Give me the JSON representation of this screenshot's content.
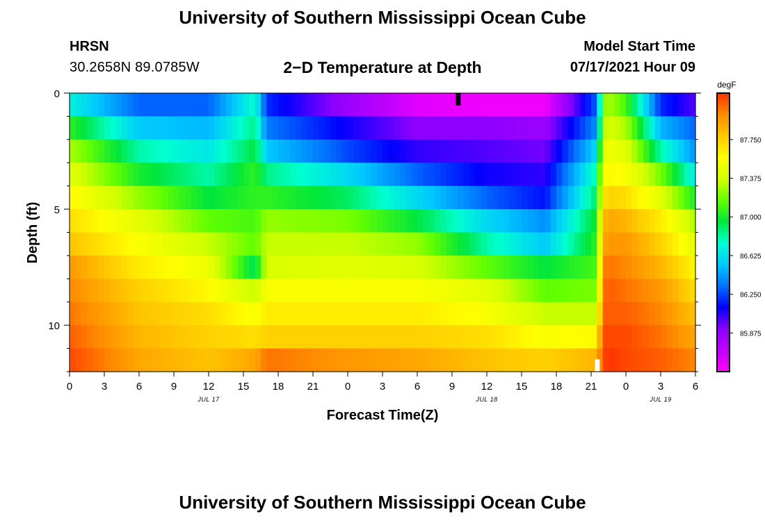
{
  "header": {
    "title": "University of Southern Mississippi Ocean Cube",
    "station": "HRSN",
    "coordinates": "30.2658N  89.0785W",
    "subtitle": "2−D Temperature at Depth",
    "model_start_label": "Model Start Time",
    "model_start_value": "07/17/2021 Hour 09"
  },
  "footer": {
    "title": "University of Southern Mississippi Ocean Cube"
  },
  "chart_data": {
    "type": "heatmap",
    "title": "2−D Temperature at Depth",
    "xlabel": "Forecast Time(Z)",
    "ylabel": "Depth (ft)",
    "x_hours_since_jul17_00z": [
      0,
      54
    ],
    "y_depth_ft_range": [
      0,
      12
    ],
    "y_ticks": [
      0,
      5,
      10
    ],
    "x_ticks_hours": [
      0,
      3,
      6,
      9,
      12,
      15,
      18,
      21,
      24,
      27,
      30,
      33,
      36,
      39,
      42,
      45,
      48,
      51,
      54
    ],
    "x_tick_labels": [
      "0",
      "3",
      "6",
      "9",
      "12",
      "15",
      "18",
      "21",
      "0",
      "3",
      "6",
      "9",
      "12",
      "15",
      "18",
      "21",
      "0",
      "3",
      "6"
    ],
    "date_labels": [
      {
        "hour": 12,
        "text": "JUL 17"
      },
      {
        "hour": 36,
        "text": "JUL 18"
      },
      {
        "hour": 51,
        "text": "JUL 19"
      }
    ],
    "current_time_marker_hour": 33.5,
    "bottom_marker_hour": 45.5,
    "colorbar": {
      "unit": "degF",
      "range": [
        85.5,
        88.2
      ],
      "tick_values": [
        85.875,
        86.25,
        86.625,
        87.0,
        87.375,
        87.75
      ],
      "tick_labels": [
        "85.875",
        "86.250",
        "86.625",
        "87.000",
        "87.375",
        "87.750"
      ],
      "colors": [
        "#ff00ff",
        "#c000ff",
        "#8a00ff",
        "#0000ff",
        "#0073ff",
        "#00c8ff",
        "#00ffd0",
        "#00e63c",
        "#64ff00",
        "#d2ff00",
        "#ffff00",
        "#ffc800",
        "#ff8c00",
        "#ff3200"
      ]
    },
    "depth_levels_ft": [
      0.5,
      1.5,
      2.5,
      3.5,
      4.5,
      5.5,
      6.5,
      7.5,
      8.5,
      9.5,
      10.5,
      11.5
    ],
    "profiles": {
      "hours": [
        0,
        6,
        12,
        16,
        17,
        24,
        30,
        36,
        41,
        45.5,
        46,
        46.5,
        48,
        51,
        54
      ],
      "temperature_degF": [
        [
          86.7,
          86.3,
          86.3,
          86.75,
          86.2,
          85.85,
          85.6,
          85.55,
          85.55,
          86.3,
          87.2,
          87.3,
          87.1,
          86.2,
          86.0
        ],
        [
          87.05,
          86.55,
          86.5,
          86.85,
          86.35,
          86.1,
          85.9,
          85.9,
          85.85,
          86.4,
          87.3,
          87.4,
          87.3,
          86.5,
          86.3
        ],
        [
          87.3,
          86.8,
          86.65,
          86.95,
          86.55,
          86.25,
          86.05,
          86.0,
          85.95,
          86.6,
          87.45,
          87.5,
          87.45,
          86.8,
          86.4
        ],
        [
          87.45,
          87.0,
          86.8,
          87.05,
          86.85,
          86.6,
          86.3,
          86.1,
          86.05,
          86.8,
          87.55,
          87.6,
          87.55,
          87.2,
          86.65
        ],
        [
          87.6,
          87.25,
          86.95,
          87.05,
          87.05,
          86.9,
          86.6,
          86.3,
          86.15,
          86.9,
          87.65,
          87.75,
          87.7,
          87.45,
          87.0
        ],
        [
          87.7,
          87.45,
          87.15,
          87.1,
          87.25,
          87.2,
          86.95,
          86.6,
          86.4,
          87.0,
          87.8,
          87.9,
          87.85,
          87.65,
          87.3
        ],
        [
          87.8,
          87.55,
          87.35,
          87.15,
          87.35,
          87.35,
          87.25,
          86.8,
          86.55,
          87.05,
          87.9,
          87.95,
          87.95,
          87.75,
          87.45
        ],
        [
          87.95,
          87.65,
          87.5,
          86.9,
          87.4,
          87.45,
          87.4,
          87.15,
          86.95,
          87.1,
          88.0,
          88.05,
          88.0,
          87.85,
          87.6
        ],
        [
          88.0,
          87.75,
          87.6,
          87.35,
          87.55,
          87.55,
          87.55,
          87.45,
          87.15,
          87.2,
          88.05,
          88.1,
          88.05,
          87.95,
          87.7
        ],
        [
          88.05,
          87.8,
          87.7,
          87.55,
          87.65,
          87.65,
          87.65,
          87.55,
          87.35,
          87.35,
          88.1,
          88.1,
          88.1,
          88.0,
          87.8
        ],
        [
          88.1,
          87.85,
          87.75,
          87.7,
          87.75,
          87.75,
          87.75,
          87.7,
          87.55,
          87.6,
          88.15,
          88.15,
          88.15,
          88.05,
          87.9
        ],
        [
          88.15,
          87.9,
          87.8,
          87.9,
          88.05,
          87.95,
          87.9,
          87.8,
          87.75,
          87.85,
          88.15,
          88.2,
          88.15,
          88.1,
          88.0
        ]
      ]
    }
  }
}
